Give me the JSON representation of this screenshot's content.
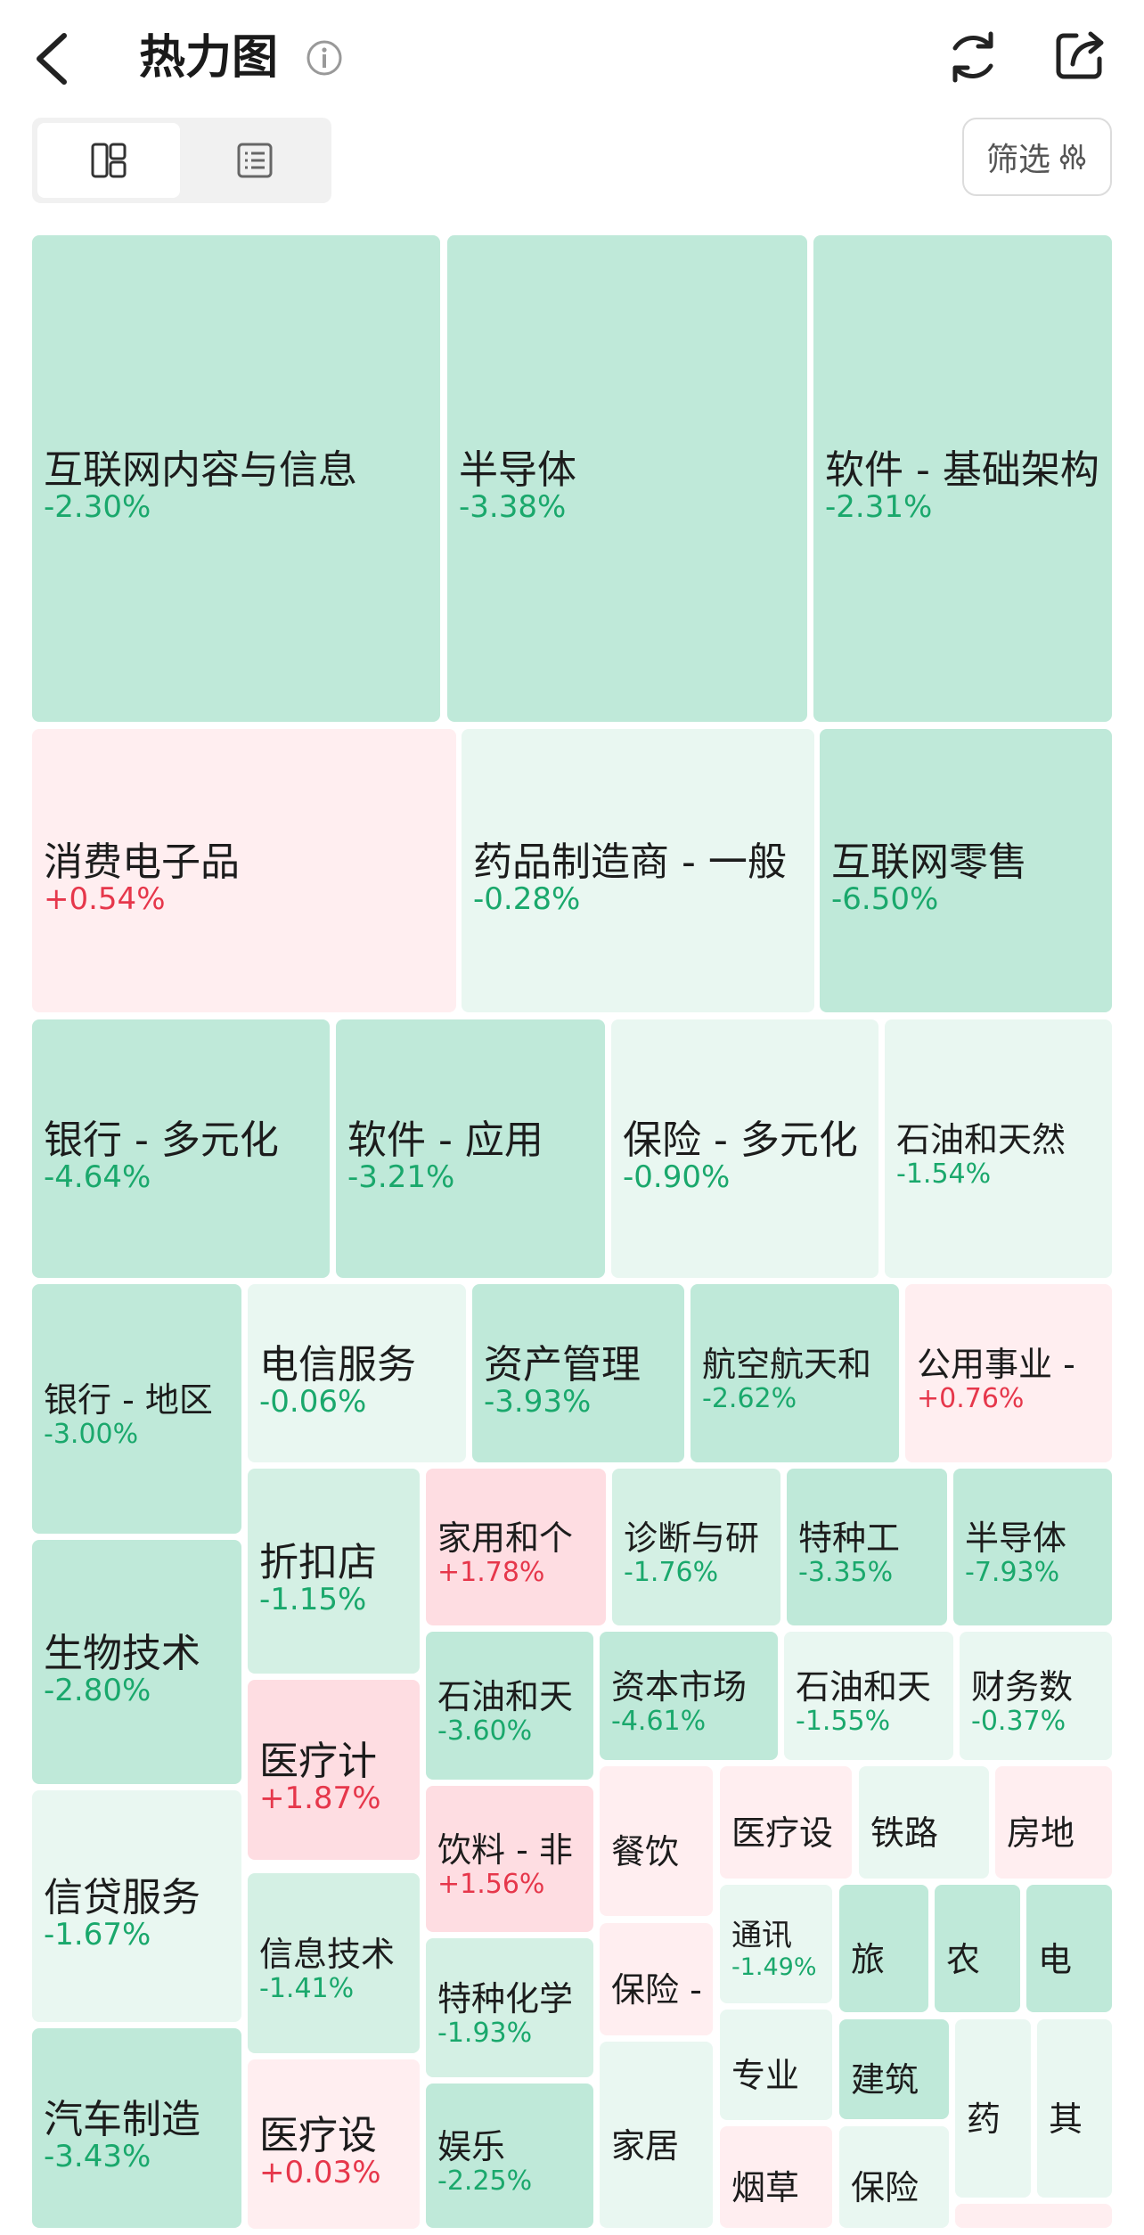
{
  "header": {
    "title": "热力图",
    "filter_label": "筛选"
  },
  "colors": {
    "down_deep": "#bfe9d9",
    "down_mid": "#d4f0e4",
    "down_light": "#e9f7f1",
    "up_light": "#ffeef0",
    "up_mid": "#fedde2",
    "down_text": "#1aa86c",
    "up_text": "#e6374b"
  },
  "tiles": [
    {
      "name": "互联网内容与信息",
      "change": "-2.30%"
    },
    {
      "name": "半导体",
      "change": "-3.38%"
    },
    {
      "name": "软件 - 基础架构",
      "change": "-2.31%"
    },
    {
      "name": "消费电子品",
      "change": "+0.54%"
    },
    {
      "name": "药品制造商 - 一般",
      "change": "-0.28%"
    },
    {
      "name": "互联网零售",
      "change": "-6.50%"
    },
    {
      "name": "银行 - 多元化",
      "change": "-4.64%"
    },
    {
      "name": "软件 - 应用",
      "change": "-3.21%"
    },
    {
      "name": "保险 - 多元化",
      "change": "-0.90%"
    },
    {
      "name": "石油和天然",
      "change": "-1.54%"
    },
    {
      "name": "银行 - 地区",
      "change": "-3.00%"
    },
    {
      "name": "电信服务",
      "change": "-0.06%"
    },
    {
      "name": "资产管理",
      "change": "-3.93%"
    },
    {
      "name": "航空航天和",
      "change": "-2.62%"
    },
    {
      "name": "公用事业 -",
      "change": "+0.76%"
    },
    {
      "name": "生物技术",
      "change": "-2.80%"
    },
    {
      "name": "折扣店",
      "change": "-1.15%"
    },
    {
      "name": "家用和个",
      "change": "+1.78%"
    },
    {
      "name": "诊断与研",
      "change": "-1.76%"
    },
    {
      "name": "特种工",
      "change": "-3.35%"
    },
    {
      "name": "半导体",
      "change": "-7.93%"
    },
    {
      "name": "石油和天",
      "change": "-3.60%"
    },
    {
      "name": "资本市场",
      "change": "-4.61%"
    },
    {
      "name": "石油和天",
      "change": "-1.55%"
    },
    {
      "name": "财务数",
      "change": "-0.37%"
    },
    {
      "name": "医疗计",
      "change": "+1.87%"
    },
    {
      "name": "信贷服务",
      "change": "-1.67%"
    },
    {
      "name": "饮料 - 非",
      "change": "+1.56%"
    },
    {
      "name": "餐饮",
      "change": ""
    },
    {
      "name": "医疗设",
      "change": ""
    },
    {
      "name": "铁路",
      "change": ""
    },
    {
      "name": "房地",
      "change": ""
    },
    {
      "name": "信息技术",
      "change": "-1.41%"
    },
    {
      "name": "特种化学",
      "change": "-1.93%"
    },
    {
      "name": "保险 -",
      "change": ""
    },
    {
      "name": "通讯",
      "change": "-1.49%"
    },
    {
      "name": "旅",
      "change": ""
    },
    {
      "name": "农",
      "change": ""
    },
    {
      "name": "电",
      "change": ""
    },
    {
      "name": "专业",
      "change": ""
    },
    {
      "name": "建筑",
      "change": ""
    },
    {
      "name": "药",
      "change": ""
    },
    {
      "name": "其",
      "change": ""
    },
    {
      "name": "汽车制造",
      "change": "-3.43%"
    },
    {
      "name": "医疗设",
      "change": "+0.03%"
    },
    {
      "name": "娱乐",
      "change": "-2.25%"
    },
    {
      "name": "家居",
      "change": ""
    },
    {
      "name": "烟草",
      "change": ""
    },
    {
      "name": "保险",
      "change": ""
    },
    {
      "name": "",
      "change": ""
    }
  ]
}
